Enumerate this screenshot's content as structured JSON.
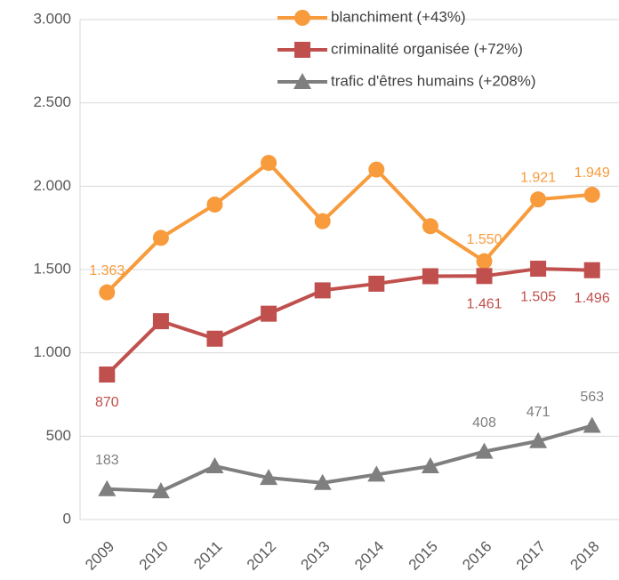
{
  "chart_data": {
    "type": "line",
    "categories": [
      "2009",
      "2010",
      "2011",
      "2012",
      "2013",
      "2014",
      "2015",
      "2016",
      "2017",
      "2018"
    ],
    "series": [
      {
        "name": "blanchiment (+43%)",
        "color": "#f79b3c",
        "marker": "circle",
        "values": [
          1363,
          1690,
          1890,
          2140,
          1790,
          2100,
          1760,
          1550,
          1921,
          1949
        ],
        "value_labels": [
          "1.363",
          null,
          null,
          null,
          null,
          null,
          null,
          "1.550",
          "1.921",
          "1.949"
        ]
      },
      {
        "name": "criminalité organisée (+72%)",
        "color": "#c0504d",
        "marker": "square",
        "values": [
          870,
          1190,
          1085,
          1235,
          1375,
          1415,
          1460,
          1461,
          1505,
          1496
        ],
        "value_labels": [
          "870",
          null,
          null,
          null,
          null,
          null,
          null,
          "1.461",
          "1.505",
          "1.496"
        ]
      },
      {
        "name": "trafic d'êtres humains (+208%)",
        "color": "#7f7f7f",
        "marker": "triangle",
        "values": [
          183,
          170,
          320,
          250,
          220,
          270,
          320,
          408,
          471,
          563
        ],
        "value_labels": [
          "183",
          null,
          null,
          null,
          null,
          null,
          null,
          "408",
          "471",
          "563"
        ]
      }
    ],
    "ylim": [
      0,
      3000
    ],
    "yticks": [
      0,
      500,
      {
        "value": 1000,
        "label": "1.000"
      },
      {
        "value": 1500,
        "label": "1.500"
      },
      {
        "value": 2000,
        "label": "2.000"
      },
      {
        "value": 2500,
        "label": "2.500"
      },
      {
        "value": 3000,
        "label": "3.000"
      }
    ],
    "grid": true
  }
}
